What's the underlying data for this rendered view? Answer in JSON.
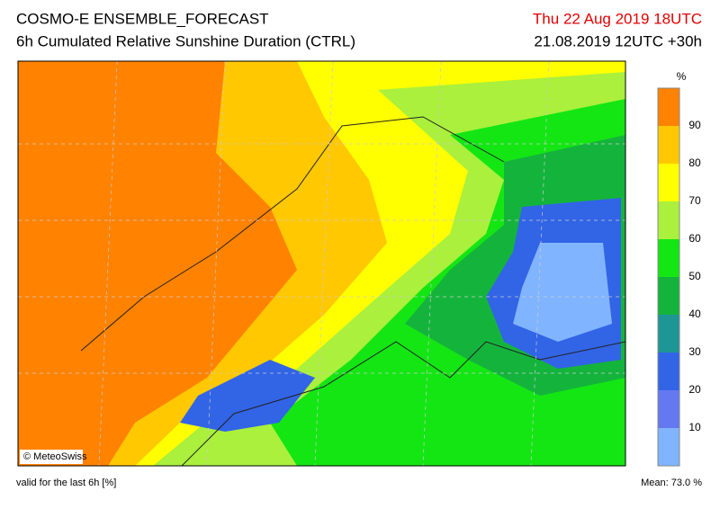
{
  "header": {
    "title": "COSMO-E ENSEMBLE_FORECAST",
    "subtitle": "6h Cumulated Relative Sunshine Duration (CTRL)",
    "valid_time": "Thu 22 Aug 2019 18UTC",
    "run": "21.08.2019 12UTC +30h"
  },
  "legend": {
    "unit": "%",
    "ticks": [
      10,
      20,
      30,
      40,
      50,
      60,
      70,
      80,
      90
    ],
    "colors": [
      "#80b4ff",
      "#6478f0",
      "#3264e6",
      "#1e9696",
      "#14b43c",
      "#14e614",
      "#aaf03c",
      "#ffff00",
      "#ffc800",
      "#ff8200"
    ]
  },
  "map": {
    "copyright": "© MeteoSwiss"
  },
  "footer": {
    "note": "valid for the last 6h [%]",
    "mean": "Mean:  73.0 %"
  }
}
